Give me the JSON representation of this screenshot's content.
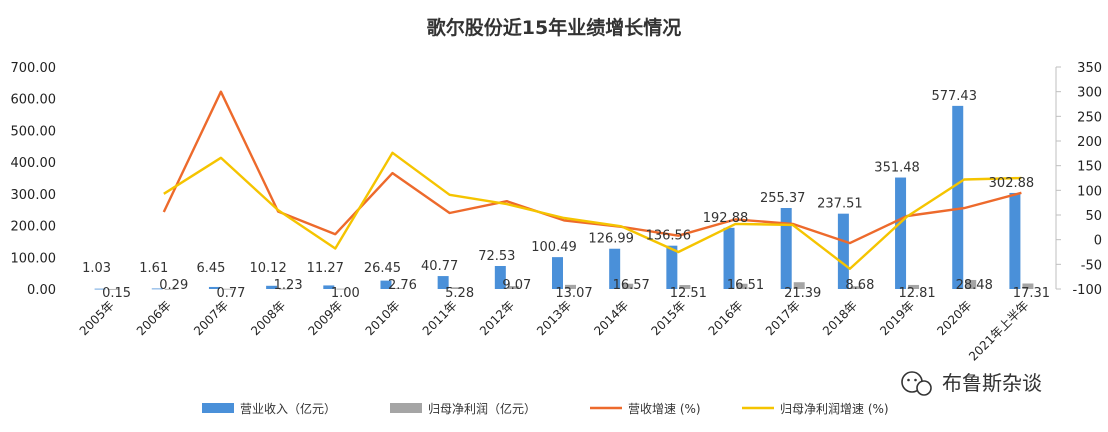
{
  "chart_data": {
    "type": "bar",
    "title": "歌尔股份近15年业绩增长情况",
    "categories": [
      "2005年",
      "2006年",
      "2007年",
      "2008年",
      "2009年",
      "2010年",
      "2011年",
      "2012年",
      "2013年",
      "2014年",
      "2015年",
      "2016年",
      "2017年",
      "2018年",
      "2019年",
      "2020年",
      "2021年上半年"
    ],
    "y_left": {
      "min": 0,
      "max": 700,
      "ticks": [
        "0.00",
        "100.00",
        "200.00",
        "300.00",
        "400.00",
        "500.00",
        "600.00",
        "700.00"
      ]
    },
    "y_right": {
      "min": -100,
      "max": 350,
      "ticks": [
        "-100",
        "-50",
        "0",
        "50",
        "100",
        "150",
        "200",
        "250",
        "300",
        "350"
      ]
    },
    "series": [
      {
        "name": "营业收入（亿元）",
        "type": "bar",
        "axis": "left",
        "color": "#4a90d9",
        "values": [
          1.03,
          1.61,
          6.45,
          10.12,
          11.27,
          26.45,
          40.77,
          72.53,
          100.49,
          126.99,
          136.56,
          192.88,
          255.37,
          237.51,
          351.48,
          577.43,
          302.88
        ],
        "labels": [
          "1.03",
          "1.61",
          "6.45",
          "10.12",
          "11.27",
          "26.45",
          "40.77",
          "72.53",
          "100.49",
          "126.99",
          "136.56",
          "192.88",
          "255.37",
          "237.51",
          "351.48",
          "577.43",
          "302.88"
        ]
      },
      {
        "name": "归母净利润（亿元）",
        "type": "bar",
        "axis": "left",
        "color": "#a5a5a5",
        "values": [
          0.15,
          0.29,
          0.77,
          1.23,
          1.0,
          2.76,
          5.28,
          9.07,
          13.07,
          16.57,
          12.51,
          16.51,
          21.39,
          8.68,
          12.81,
          28.48,
          17.31
        ],
        "labels": [
          "0.15",
          "0.29",
          "0.77",
          "1.23",
          "1.00",
          "2.76",
          "5.28",
          "9.07",
          "13.07",
          "16.57",
          "12.51",
          "16.51",
          "21.39",
          "8.68",
          "12.81",
          "28.48",
          "17.31"
        ]
      },
      {
        "name": "营收增速 (%)",
        "type": "line",
        "axis": "right",
        "color": "#ed6a2c",
        "values": [
          null,
          56,
          300,
          57,
          11,
          135,
          54,
          78,
          39,
          26,
          8,
          41,
          32,
          -7,
          48,
          64,
          95
        ]
      },
      {
        "name": "归母净利润增速 (%)",
        "type": "line",
        "axis": "right",
        "color": "#f5c400",
        "values": [
          null,
          93,
          166,
          60,
          -18,
          176,
          91,
          72,
          44,
          27,
          -25,
          32,
          30,
          -59,
          47,
          122,
          125
        ]
      }
    ]
  },
  "watermark": {
    "text": "布鲁斯杂谈",
    "icon": "wechat-icon"
  }
}
